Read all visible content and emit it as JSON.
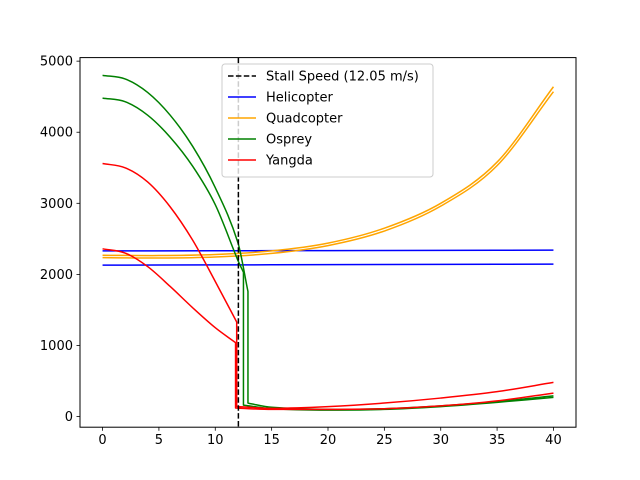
{
  "chart_data": {
    "type": "line",
    "title": "",
    "xlabel": "",
    "ylabel": "",
    "xlim": [
      -2,
      42
    ],
    "ylim": [
      -150,
      5050
    ],
    "xticks": [
      0,
      5,
      10,
      15,
      20,
      25,
      30,
      35,
      40
    ],
    "yticks": [
      0,
      1000,
      2000,
      3000,
      4000,
      5000
    ],
    "grid": false,
    "legend_position": "top-center",
    "vline": {
      "name": "Stall Speed (12.05 m/s)",
      "x": 12.05,
      "color": "#000000",
      "style": "dashed"
    },
    "series": [
      {
        "name": "Helicopter",
        "color": "#0000ff",
        "x": [
          0,
          10,
          20,
          30,
          40
        ],
        "y": [
          2330,
          2332,
          2335,
          2338,
          2342
        ]
      },
      {
        "name": "",
        "color": "#0000ff",
        "x": [
          0,
          10,
          20,
          30,
          40
        ],
        "y": [
          2130,
          2133,
          2137,
          2141,
          2145
        ]
      },
      {
        "name": "Quadcopter",
        "color": "#ffa500",
        "x": [
          0,
          5,
          10,
          15,
          20,
          25,
          30,
          35,
          40
        ],
        "y": [
          2270,
          2265,
          2280,
          2330,
          2440,
          2650,
          3000,
          3580,
          4640
        ]
      },
      {
        "name": "",
        "color": "#ffa500",
        "x": [
          0,
          5,
          10,
          15,
          20,
          25,
          30,
          35,
          40
        ],
        "y": [
          2235,
          2230,
          2245,
          2295,
          2405,
          2610,
          2960,
          3530,
          4570
        ]
      },
      {
        "name": "Osprey",
        "color": "#008000",
        "x": [
          0,
          2,
          4,
          6,
          8,
          10,
          12,
          12.9,
          12.9,
          13,
          15,
          20,
          25,
          30,
          35,
          40
        ],
        "y": [
          4800,
          4750,
          4560,
          4240,
          3800,
          3220,
          2450,
          1760,
          190,
          185,
          130,
          100,
          110,
          150,
          210,
          290
        ]
      },
      {
        "name": "",
        "color": "#008000",
        "x": [
          0,
          2,
          4,
          6,
          8,
          10,
          12,
          12.5,
          12.5,
          13,
          15,
          20,
          25,
          30,
          35,
          40
        ],
        "y": [
          4480,
          4430,
          4240,
          3930,
          3520,
          2980,
          2200,
          2030,
          160,
          150,
          110,
          90,
          100,
          140,
          200,
          270
        ]
      },
      {
        "name": "Yangda",
        "color": "#ff0000",
        "x": [
          0,
          2,
          4,
          6,
          8,
          10,
          11.9,
          11.9,
          13,
          15,
          20,
          25,
          30,
          35,
          40
        ],
        "y": [
          3560,
          3500,
          3300,
          2950,
          2480,
          1900,
          1330,
          140,
          130,
          115,
          140,
          190,
          260,
          350,
          480
        ]
      },
      {
        "name": "",
        "color": "#ff0000",
        "x": [
          0,
          2,
          4,
          6,
          8,
          10,
          11.8,
          11.8,
          13,
          15,
          20,
          25,
          30,
          35,
          40
        ],
        "y": [
          2360,
          2300,
          2110,
          1830,
          1530,
          1250,
          1040,
          120,
          110,
          100,
          100,
          110,
          150,
          220,
          330
        ]
      }
    ]
  }
}
